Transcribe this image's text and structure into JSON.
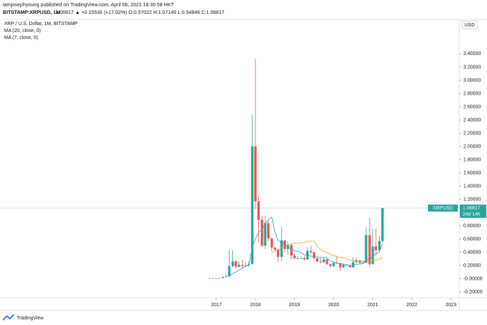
{
  "header": {
    "author_line": "iamjosephyoung published on TradingView.com, April 06, 2021 18:30:58 HKT",
    "symbol": "BITSTAMP:XRPUSD, 1M",
    "quote": "1.06817 ▲ +0.15536 (+17.02%) O:0.57022 H:1.07140 L:0.54846 C:1.06817"
  },
  "footer": {
    "brand": "TradingView"
  },
  "chart_data": {
    "type": "candlestick",
    "title": "XRP / U.S. Dollar, 1M, BITSTAMP",
    "x": [
      2016.83,
      2016.92,
      2017,
      2017.08,
      2017.17,
      2017.25,
      2017.33,
      2017.42,
      2017.5,
      2017.58,
      2017.67,
      2017.75,
      2017.83,
      2017.92,
      2018,
      2018.08,
      2018.17,
      2018.25,
      2018.33,
      2018.42,
      2018.5,
      2018.58,
      2018.67,
      2018.75,
      2018.83,
      2018.92,
      2019,
      2019.08,
      2019.17,
      2019.25,
      2019.33,
      2019.42,
      2019.5,
      2019.58,
      2019.67,
      2019.75,
      2019.83,
      2019.92,
      2020,
      2020.08,
      2020.17,
      2020.25,
      2020.33,
      2020.42,
      2020.5,
      2020.58,
      2020.67,
      2020.75,
      2020.83,
      2020.92,
      2021,
      2021.08,
      2021.17,
      2021.25
    ],
    "open": [
      0.0086,
      0.0073,
      0.0065,
      0.0063,
      0.0084,
      0.022,
      0.032,
      0.19,
      0.26,
      0.18,
      0.21,
      0.19,
      0.2,
      0.22,
      2.0,
      1.17,
      0.89,
      0.5,
      0.84,
      0.61,
      0.47,
      0.44,
      0.33,
      0.58,
      0.45,
      0.51,
      0.35,
      0.31,
      0.31,
      0.31,
      0.29,
      0.42,
      0.4,
      0.31,
      0.26,
      0.25,
      0.29,
      0.22,
      0.19,
      0.24,
      0.23,
      0.17,
      0.21,
      0.2,
      0.17,
      0.25,
      0.28,
      0.24,
      0.24,
      0.66,
      0.22,
      0.49,
      0.43,
      0.57022
    ],
    "high": [
      0.0095,
      0.0078,
      0.0073,
      0.009,
      0.039,
      0.065,
      0.44,
      0.43,
      0.28,
      0.26,
      0.28,
      0.26,
      0.26,
      2.48,
      3.32,
      1.24,
      0.95,
      0.95,
      0.88,
      0.62,
      0.49,
      0.45,
      0.78,
      0.58,
      0.57,
      0.52,
      0.38,
      0.34,
      0.33,
      0.34,
      0.48,
      0.5,
      0.41,
      0.32,
      0.32,
      0.32,
      0.31,
      0.23,
      0.24,
      0.35,
      0.24,
      0.23,
      0.22,
      0.21,
      0.32,
      0.32,
      0.28,
      0.26,
      0.78,
      0.92,
      0.75,
      0.76,
      0.65,
      1.0714
    ],
    "low": [
      0.007,
      0.0062,
      0.006,
      0.006,
      0.0084,
      0.019,
      0.032,
      0.17,
      0.15,
      0.17,
      0.16,
      0.18,
      0.19,
      0.22,
      1.05,
      0.56,
      0.48,
      0.45,
      0.56,
      0.42,
      0.42,
      0.25,
      0.26,
      0.4,
      0.36,
      0.29,
      0.29,
      0.29,
      0.3,
      0.28,
      0.29,
      0.37,
      0.29,
      0.24,
      0.23,
      0.24,
      0.21,
      0.17,
      0.18,
      0.22,
      0.11,
      0.17,
      0.19,
      0.17,
      0.17,
      0.24,
      0.22,
      0.23,
      0.24,
      0.17,
      0.22,
      0.35,
      0.4,
      0.54846
    ],
    "close": [
      0.0073,
      0.0065,
      0.0063,
      0.0084,
      0.022,
      0.032,
      0.19,
      0.26,
      0.18,
      0.21,
      0.19,
      0.2,
      0.22,
      2.0,
      1.17,
      0.89,
      0.5,
      0.84,
      0.61,
      0.47,
      0.44,
      0.33,
      0.58,
      0.45,
      0.51,
      0.35,
      0.31,
      0.31,
      0.31,
      0.29,
      0.42,
      0.4,
      0.31,
      0.26,
      0.25,
      0.29,
      0.22,
      0.19,
      0.24,
      0.23,
      0.17,
      0.21,
      0.2,
      0.17,
      0.25,
      0.28,
      0.24,
      0.24,
      0.66,
      0.22,
      0.49,
      0.43,
      0.57,
      1.06817
    ],
    "up_color": "#26a69a",
    "down_color": "#ef5350",
    "series": [
      {
        "name": "MA (20, close, 0)",
        "color": "#f5a623",
        "values": [
          null,
          null,
          null,
          null,
          null,
          null,
          null,
          null,
          null,
          null,
          null,
          null,
          null,
          null,
          null,
          null,
          null,
          null,
          null,
          0.4,
          0.42,
          0.44,
          0.47,
          0.49,
          0.51,
          0.53,
          0.54,
          0.54,
          0.54,
          0.55,
          0.56,
          0.57,
          0.57,
          0.49,
          0.44,
          0.41,
          0.4,
          0.37,
          0.35,
          0.33,
          0.32,
          0.32,
          0.3,
          0.28,
          0.27,
          0.27,
          0.26,
          0.26,
          0.28,
          0.27,
          0.28,
          0.28,
          0.29,
          0.33
        ]
      },
      {
        "name": "MA (7, close, 0)",
        "color": "#29a3d8",
        "values": [
          null,
          null,
          null,
          null,
          null,
          null,
          0.04,
          0.08,
          0.1,
          0.13,
          0.16,
          0.18,
          0.21,
          0.47,
          0.6,
          0.7,
          0.74,
          0.83,
          0.89,
          0.93,
          0.7,
          0.58,
          0.54,
          0.53,
          0.48,
          0.45,
          0.42,
          0.41,
          0.4,
          0.36,
          0.36,
          0.34,
          0.34,
          0.33,
          0.32,
          0.32,
          0.31,
          0.27,
          0.25,
          0.24,
          0.23,
          0.22,
          0.21,
          0.2,
          0.21,
          0.22,
          0.22,
          0.23,
          0.29,
          0.29,
          0.34,
          0.37,
          0.41,
          0.53
        ]
      }
    ],
    "xlim": [
      2011.47,
      2023.21
    ],
    "ylim": [
      -0.29,
      3.92
    ],
    "xticks": [
      2017,
      2018,
      2019,
      2020,
      2021,
      2022,
      2023
    ],
    "yticks": [
      {
        "value": -0.2,
        "label": "-0.20000"
      },
      {
        "value": 0,
        "label": "-0.00000"
      },
      {
        "value": 0.2,
        "label": "0.20000"
      },
      {
        "value": 0.4,
        "label": "0.40000"
      },
      {
        "value": 0.6,
        "label": "0.60000"
      },
      {
        "value": 0.8,
        "label": "0.80000"
      },
      {
        "value": 1.0,
        "label": "1.00000"
      },
      {
        "value": 1.2,
        "label": "1.20000"
      },
      {
        "value": 1.4,
        "label": "1.40000"
      },
      {
        "value": 1.6,
        "label": "1.60000"
      },
      {
        "value": 1.8,
        "label": "1.80000"
      },
      {
        "value": 2.0,
        "label": "2.00000"
      },
      {
        "value": 2.2,
        "label": "2.20000"
      },
      {
        "value": 2.4,
        "label": "2.40000"
      },
      {
        "value": 2.6,
        "label": "2.60000"
      },
      {
        "value": 2.8,
        "label": "2.80000"
      },
      {
        "value": 3.0,
        "label": "3.00000"
      },
      {
        "value": 3.2,
        "label": "3.20000"
      },
      {
        "value": 3.4,
        "label": "3.40000"
      }
    ],
    "y_unit": "USD",
    "price_label": {
      "symbol": "XRPUSD",
      "countdown": "24d 14h"
    }
  }
}
